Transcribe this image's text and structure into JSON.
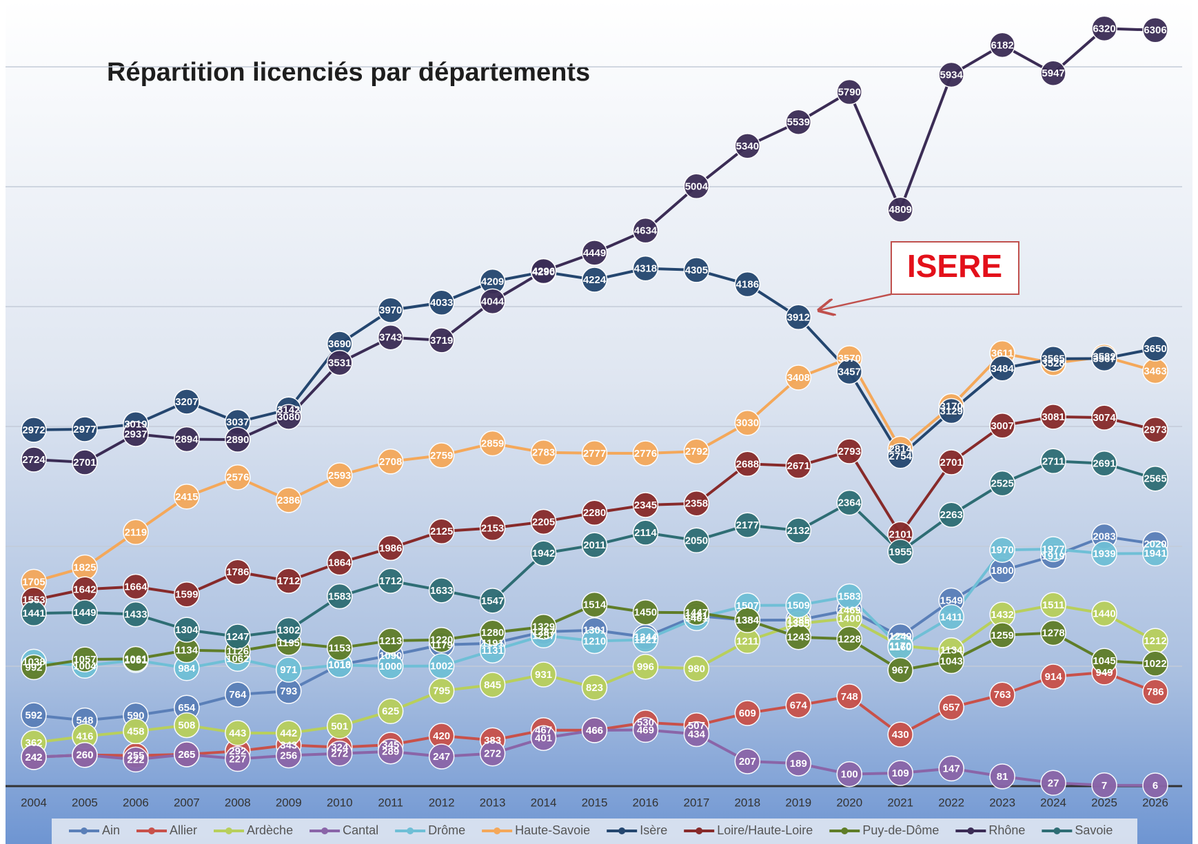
{
  "chart_data": {
    "type": "line",
    "title": "Répartition licenciés par départements",
    "categories": [
      "2004",
      "2005",
      "2006",
      "2007",
      "2008",
      "2009",
      "2010",
      "2011",
      "2012",
      "2013",
      "2014",
      "2015",
      "2016",
      "2017",
      "2018",
      "2019",
      "2020",
      "2021",
      "2022",
      "2023",
      "2024",
      "2025",
      "2026"
    ],
    "ylim": [
      0,
      6500
    ],
    "yticks": [
      0,
      1000,
      2000,
      3000,
      4000,
      5000,
      6000
    ],
    "grid": true,
    "legend": "bottom",
    "annotations": [
      {
        "text": "ISERE",
        "series": "Isère",
        "category": "2019"
      }
    ],
    "series": [
      {
        "name": "Ain",
        "color": "#5a7fb8",
        "values": [
          592,
          548,
          590,
          654,
          764,
          793,
          1013,
          1090,
          1179,
          1191,
          1287,
          1301,
          1244,
          1421,
          1384,
          1385,
          1469,
          1249,
          1549,
          1800,
          1919,
          2083,
          2020
        ]
      },
      {
        "name": "Allier",
        "color": "#c8514a",
        "values": [
          242,
          260,
          255,
          265,
          292,
          343,
          324,
          345,
          420,
          383,
          467,
          466,
          530,
          507,
          609,
          674,
          748,
          430,
          657,
          763,
          914,
          949,
          786
        ]
      },
      {
        "name": "Ardèche",
        "color": "#b8cf5c",
        "values": [
          362,
          416,
          458,
          508,
          443,
          442,
          501,
          625,
          795,
          845,
          931,
          823,
          996,
          980,
          1211,
          1355,
          1400,
          1170,
          1134,
          1432,
          1511,
          1440,
          1212
        ]
      },
      {
        "name": "Cantal",
        "color": "#8a65a8",
        "values": [
          242,
          260,
          222,
          265,
          227,
          256,
          272,
          289,
          247,
          272,
          401,
          466,
          469,
          434,
          207,
          189,
          100,
          109,
          147,
          81,
          27,
          7,
          6
        ]
      },
      {
        "name": "Drôme",
        "color": "#6fbfd6",
        "values": [
          1038,
          1004,
          1051,
          984,
          1062,
          971,
          1010,
          1000,
          1002,
          1131,
          1257,
          1210,
          1221,
          1401,
          1507,
          1509,
          1583,
          1160,
          1411,
          1970,
          1977,
          1939,
          1941
        ]
      },
      {
        "name": "Haute-Savoie",
        "color": "#f4a85a",
        "values": [
          1705,
          1825,
          2119,
          2415,
          2576,
          2386,
          2593,
          2708,
          2759,
          2859,
          2783,
          2777,
          2776,
          2792,
          3030,
          3408,
          3570,
          2814,
          3170,
          3611,
          3528,
          3582,
          3463
        ]
      },
      {
        "name": "Isère",
        "color": "#24466f",
        "values": [
          2972,
          2977,
          3019,
          3207,
          3037,
          3142,
          3690,
          3970,
          4033,
          4209,
          4290,
          4224,
          4318,
          4305,
          4186,
          3912,
          3457,
          2754,
          3129,
          3484,
          3565,
          3567,
          3650
        ]
      },
      {
        "name": "Loire/Haute-Loire",
        "color": "#872a2a",
        "values": [
          1553,
          1642,
          1664,
          1599,
          1786,
          1712,
          1864,
          1986,
          2125,
          2153,
          2205,
          2280,
          2345,
          2358,
          2688,
          2671,
          2793,
          2101,
          2701,
          3007,
          3081,
          3074,
          2973
        ]
      },
      {
        "name": "Puy-de-Dôme",
        "color": "#5f7d28",
        "values": [
          992,
          1057,
          1061,
          1134,
          1126,
          1195,
          1153,
          1213,
          1220,
          1280,
          1329,
          1514,
          1450,
          1447,
          1384,
          1243,
          1228,
          967,
          1043,
          1259,
          1278,
          1045,
          1022
        ]
      },
      {
        "name": "Rhône",
        "color": "#3b2c55",
        "values": [
          2724,
          2701,
          2937,
          2894,
          2890,
          3080,
          3531,
          3743,
          3719,
          4044,
          4296,
          4449,
          4634,
          5004,
          5340,
          5539,
          5790,
          4809,
          5934,
          6182,
          5947,
          6320,
          6306
        ]
      },
      {
        "name": "Savoie",
        "color": "#2e6d74",
        "values": [
          1441,
          1449,
          1433,
          1304,
          1247,
          1302,
          1583,
          1712,
          1633,
          1547,
          1942,
          2011,
          2114,
          2050,
          2177,
          2132,
          2364,
          1955,
          2263,
          2525,
          2711,
          2691,
          2565
        ]
      }
    ]
  }
}
